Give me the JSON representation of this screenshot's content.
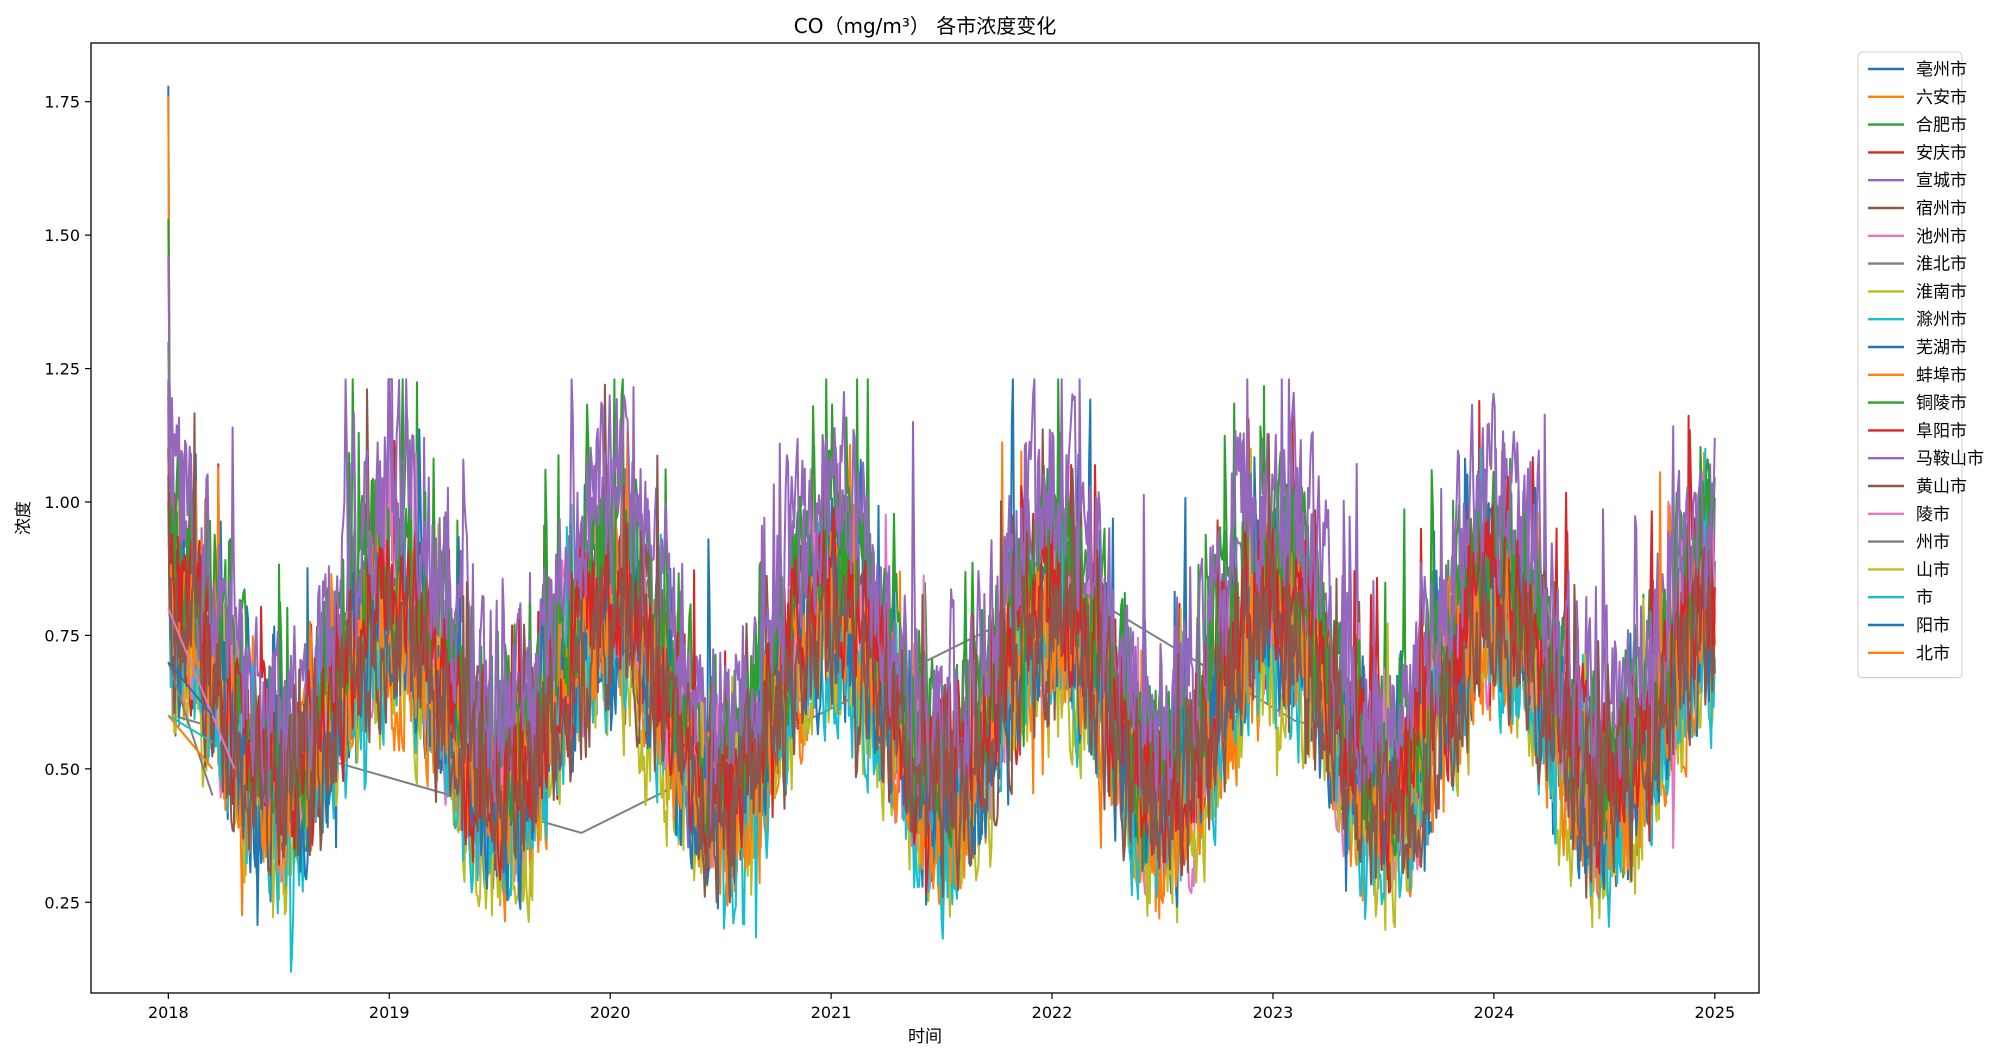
{
  "chart_data": {
    "type": "line",
    "title": "CO（mg/m³） 各市浓度变化",
    "xlabel": "时间",
    "ylabel": "浓度",
    "xlim": [
      2017.65,
      2025.2
    ],
    "ylim": [
      0.08,
      1.86
    ],
    "x_ticks": [
      2018,
      2019,
      2020,
      2021,
      2022,
      2023,
      2024,
      2025
    ],
    "x_tick_labels": [
      "2018",
      "2019",
      "2020",
      "2021",
      "2022",
      "2023",
      "2024",
      "2025"
    ],
    "y_ticks": [
      0.25,
      0.5,
      0.75,
      1.0,
      1.25,
      1.5,
      1.75
    ],
    "y_tick_labels": [
      "0.25",
      "0.50",
      "0.75",
      "1.00",
      "1.25",
      "1.50",
      "1.75"
    ],
    "grid": false,
    "legend_position": "outside-top-right",
    "colors": [
      "#1f77b4",
      "#ff7f0e",
      "#2ca02c",
      "#d62728",
      "#9467bd",
      "#8c564b",
      "#e377c2",
      "#7f7f7f",
      "#bcbd22",
      "#17becf"
    ],
    "series": [
      {
        "name": "亳州市",
        "color": "#1f77b4",
        "range": [
          2018.0,
          2025.0
        ],
        "base": 0.62,
        "amp": 0.18,
        "noise": 0.26,
        "min": 0.16,
        "max": 1.23,
        "peak": 1.78
      },
      {
        "name": "六安市",
        "color": "#ff7f0e",
        "range": [
          2018.0,
          2025.0
        ],
        "base": 0.56,
        "amp": 0.18,
        "noise": 0.24,
        "min": 0.15,
        "max": 1.22,
        "peak": 1.76
      },
      {
        "name": "合肥市",
        "color": "#2ca02c",
        "range": [
          2018.0,
          2025.0
        ],
        "base": 0.7,
        "amp": 0.2,
        "noise": 0.26,
        "min": 0.2,
        "max": 1.23,
        "peak": 1.53
      },
      {
        "name": "安庆市",
        "color": "#d62728",
        "range": [
          2018.0,
          2025.0
        ],
        "base": 0.64,
        "amp": 0.18,
        "noise": 0.26,
        "min": 0.21,
        "max": 1.23,
        "peak": 1.2
      },
      {
        "name": "宣城市",
        "color": "#9467bd",
        "range": [
          2018.0,
          2025.0
        ],
        "base": 0.72,
        "amp": 0.22,
        "noise": 0.28,
        "min": 0.3,
        "max": 1.23,
        "peak": 1.46
      },
      {
        "name": "宿州市",
        "color": "#8c564b",
        "range": [
          2018.0,
          2025.0
        ],
        "base": 0.63,
        "amp": 0.18,
        "noise": 0.24,
        "min": 0.11,
        "max": 1.22,
        "peak": 1.2
      },
      {
        "name": "池州市",
        "color": "#e377c2",
        "range": [
          2018.0,
          2025.0
        ],
        "base": 0.6,
        "amp": 0.18,
        "noise": 0.24,
        "min": 0.22,
        "max": 1.23,
        "peak": 1.1
      },
      {
        "name": "淮北市",
        "color": "#7f7f7f",
        "sparse": true,
        "points": [
          [
            2018.0,
            1.3
          ],
          [
            2018.02,
            0.6
          ],
          [
            2019.87,
            0.38
          ],
          [
            2022.1,
            0.84
          ],
          [
            2023.1,
            0.59
          ],
          [
            2023.7,
            0.53
          ]
        ]
      },
      {
        "name": "淮南市",
        "color": "#bcbd22",
        "range": [
          2018.0,
          2025.0
        ],
        "base": 0.52,
        "amp": 0.18,
        "noise": 0.22,
        "min": 0.13,
        "max": 1.1,
        "peak": 1.0
      },
      {
        "name": "滁州市",
        "color": "#17becf",
        "range": [
          2018.0,
          2025.0
        ],
        "base": 0.54,
        "amp": 0.18,
        "noise": 0.22,
        "min": 0.12,
        "max": 1.1,
        "peak": 1.0
      },
      {
        "name": "芜湖市",
        "color": "#1f77b4",
        "range": [
          2018.0,
          2025.0
        ],
        "base": 0.6,
        "amp": 0.18,
        "noise": 0.24,
        "min": 0.15,
        "max": 1.2,
        "peak": 1.1
      },
      {
        "name": "蚌埠市",
        "color": "#ff7f0e",
        "range": [
          2018.0,
          2025.0
        ],
        "base": 0.6,
        "amp": 0.18,
        "noise": 0.24,
        "min": 0.2,
        "max": 1.2,
        "peak": 1.1
      },
      {
        "name": "铜陵市",
        "color": "#2ca02c",
        "range": [
          2018.0,
          2025.0
        ],
        "base": 0.72,
        "amp": 0.2,
        "noise": 0.26,
        "min": 0.2,
        "max": 1.23,
        "peak": 1.22
      },
      {
        "name": "阜阳市",
        "color": "#d62728",
        "range": [
          2018.0,
          2025.0
        ],
        "base": 0.64,
        "amp": 0.18,
        "noise": 0.24,
        "min": 0.2,
        "max": 1.23,
        "peak": 1.18
      },
      {
        "name": "马鞍山市",
        "color": "#9467bd",
        "range": [
          2018.0,
          2025.0
        ],
        "base": 0.8,
        "amp": 0.22,
        "noise": 0.28,
        "min": 0.35,
        "max": 1.23,
        "peak": 1.23
      },
      {
        "name": "黄山市",
        "color": "#8c564b",
        "range": [
          2018.0,
          2025.0
        ],
        "base": 0.58,
        "amp": 0.16,
        "noise": 0.24,
        "min": 0.11,
        "max": 1.2,
        "peak": 1.05
      },
      {
        "name": "陵市",
        "color": "#e377c2",
        "sparse": true,
        "points": [
          [
            2018.0,
            0.8
          ],
          [
            2018.3,
            0.5
          ]
        ]
      },
      {
        "name": "州市",
        "color": "#7f7f7f",
        "sparse": true,
        "points": [
          [
            2018.0,
            0.7
          ],
          [
            2018.2,
            0.45
          ]
        ]
      },
      {
        "name": "山市",
        "color": "#bcbd22",
        "sparse": true,
        "points": [
          [
            2018.0,
            0.6
          ],
          [
            2018.2,
            0.5
          ]
        ]
      },
      {
        "name": "市",
        "color": "#17becf",
        "sparse": true,
        "points": [
          [
            2018.0,
            0.6
          ],
          [
            2018.2,
            0.55
          ]
        ]
      },
      {
        "name": "阳市",
        "color": "#1f77b4",
        "sparse": true,
        "points": [
          [
            2018.0,
            0.7
          ],
          [
            2018.2,
            0.6
          ]
        ]
      },
      {
        "name": "北市",
        "color": "#ff7f0e",
        "sparse": true,
        "points": [
          [
            2018.0,
            0.6
          ],
          [
            2018.2,
            0.5
          ]
        ]
      }
    ]
  }
}
